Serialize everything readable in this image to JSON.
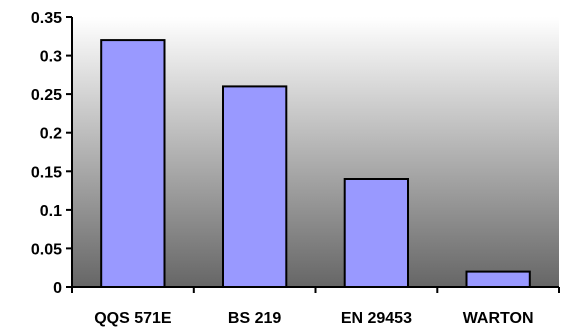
{
  "chart_data": {
    "type": "bar",
    "categories": [
      "QQS 571E",
      "BS 219",
      "EN 29453",
      "WARTON"
    ],
    "values": [
      0.32,
      0.26,
      0.14,
      0.02
    ],
    "ylim": [
      0,
      0.35
    ],
    "yticks": [
      "0",
      "0.05",
      "0.1",
      "0.15",
      "0.2",
      "0.25",
      "0.3",
      "0.35"
    ],
    "grid": false,
    "legend": "none",
    "colors": {
      "bar_fill": "#9999ff",
      "bar_stroke": "#000000",
      "background_top": "#ffffff",
      "background_bottom": "#666666"
    }
  }
}
